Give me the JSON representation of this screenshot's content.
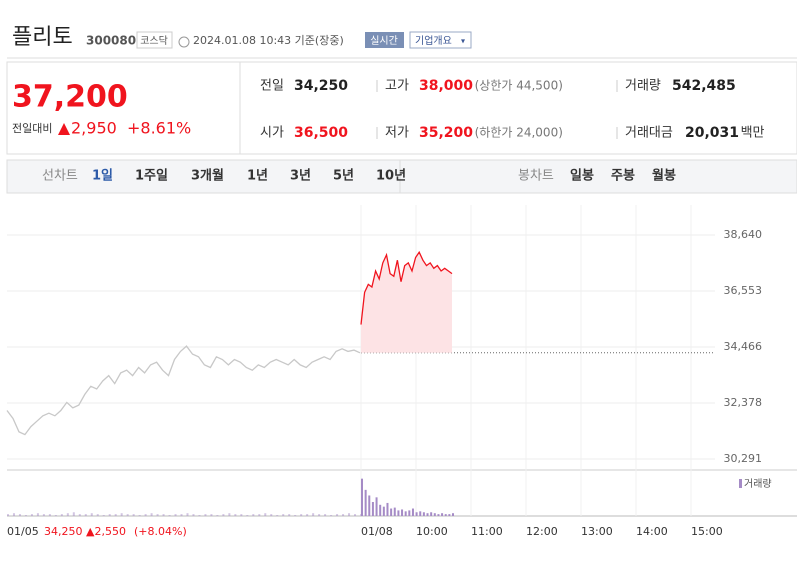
{
  "header": {
    "name": "플리토",
    "code": "300080",
    "market": "코스닥",
    "datetime": "2024.01.08 10:43 기준(장중)",
    "realtime": "실시간",
    "company_info": "기업개요"
  },
  "quote": {
    "price": "37,200",
    "change_caption": "전일대비",
    "change": "2,950",
    "change_pct": "+8.61%",
    "items": [
      {
        "label": "전일",
        "value": "34,250"
      },
      {
        "label": "고가",
        "value": "38,000",
        "note": "(상한가 44,500)"
      },
      {
        "label": "거래량",
        "value": "542,485"
      },
      {
        "label": "시가",
        "value": "36,500"
      },
      {
        "label": "저가",
        "value": "35,200",
        "note": "(하한가 24,000)"
      },
      {
        "label": "거래대금",
        "value": "20,031",
        "unit": "백만"
      }
    ]
  },
  "tabs": {
    "line_chart": "선차트",
    "line_periods": [
      "1일",
      "1주일",
      "3개월",
      "1년",
      "3년",
      "5년",
      "10년"
    ],
    "candle_chart": "봉차트",
    "candle_periods": [
      "일봉",
      "주봉",
      "월봉"
    ]
  },
  "chart_data": {
    "type": "line",
    "ylim": [
      29956,
      39758
    ],
    "yticks": [
      {
        "value": 30291,
        "label": "30,291"
      },
      {
        "value": 32378,
        "label": "32,378"
      },
      {
        "value": 34466,
        "label": "34,466"
      },
      {
        "value": 36553,
        "label": "36,553"
      },
      {
        "value": 38640,
        "label": "38,640"
      }
    ],
    "xticks": [
      "01/05",
      "01/08",
      "10:00",
      "11:00",
      "12:00",
      "13:00",
      "14:00",
      "15:00"
    ],
    "previous_close": {
      "value": 34250,
      "label": "34,250"
    },
    "previous_change": "▲2,550",
    "previous_change_pct": "(+8.04%)",
    "series": [
      {
        "color": "#c8c8c8",
        "values": [
          32100,
          31800,
          31300,
          31200,
          31500,
          31700,
          31900,
          32000,
          31900,
          32100,
          32400,
          32200,
          32300,
          32700,
          33000,
          32900,
          33200,
          33400,
          33100,
          33500,
          33600,
          33400,
          33700,
          33500,
          33800,
          33900,
          33600,
          33400,
          34000,
          34300,
          34500,
          34200,
          34100,
          33800,
          33700,
          34100,
          34000,
          33800,
          34000,
          33900,
          33700,
          33600,
          33800,
          33700,
          33900,
          34000,
          33900,
          33800,
          34000,
          33800,
          33700,
          33900,
          34000,
          34100,
          34000,
          34300,
          34400,
          34300,
          34350,
          34250
        ]
      },
      {
        "color": "#f0141e",
        "values": [
          35300,
          36500,
          36800,
          36700,
          37300,
          37000,
          37600,
          37900,
          37200,
          37100,
          37700,
          36900,
          37500,
          37600,
          37300,
          37800,
          38000,
          37700,
          37500,
          37600,
          37400,
          37500,
          37300,
          37400,
          37300,
          37200
        ]
      }
    ],
    "volume": {
      "name": "거래량",
      "color": "#a58bc6",
      "vlim": [
        0,
        45
      ],
      "previous": [
        2,
        3,
        2,
        1,
        2,
        3,
        2,
        2,
        1,
        2,
        3,
        4,
        2,
        2,
        3,
        2,
        1,
        2,
        2,
        3,
        2,
        2,
        1,
        2,
        3,
        2,
        2,
        1,
        2,
        2,
        3,
        2,
        1,
        2,
        2,
        1,
        2,
        3,
        2,
        2,
        1,
        2,
        2,
        3,
        2,
        1,
        2,
        2,
        1,
        2,
        2,
        3,
        2,
        2,
        1,
        2,
        2,
        3,
        2,
        2
      ],
      "today": [
        40,
        28,
        22,
        15,
        20,
        12,
        10,
        14,
        8,
        9,
        6,
        7,
        5,
        6,
        8,
        4,
        5,
        4,
        3,
        4,
        3,
        2,
        3,
        2,
        2,
        3
      ]
    }
  }
}
